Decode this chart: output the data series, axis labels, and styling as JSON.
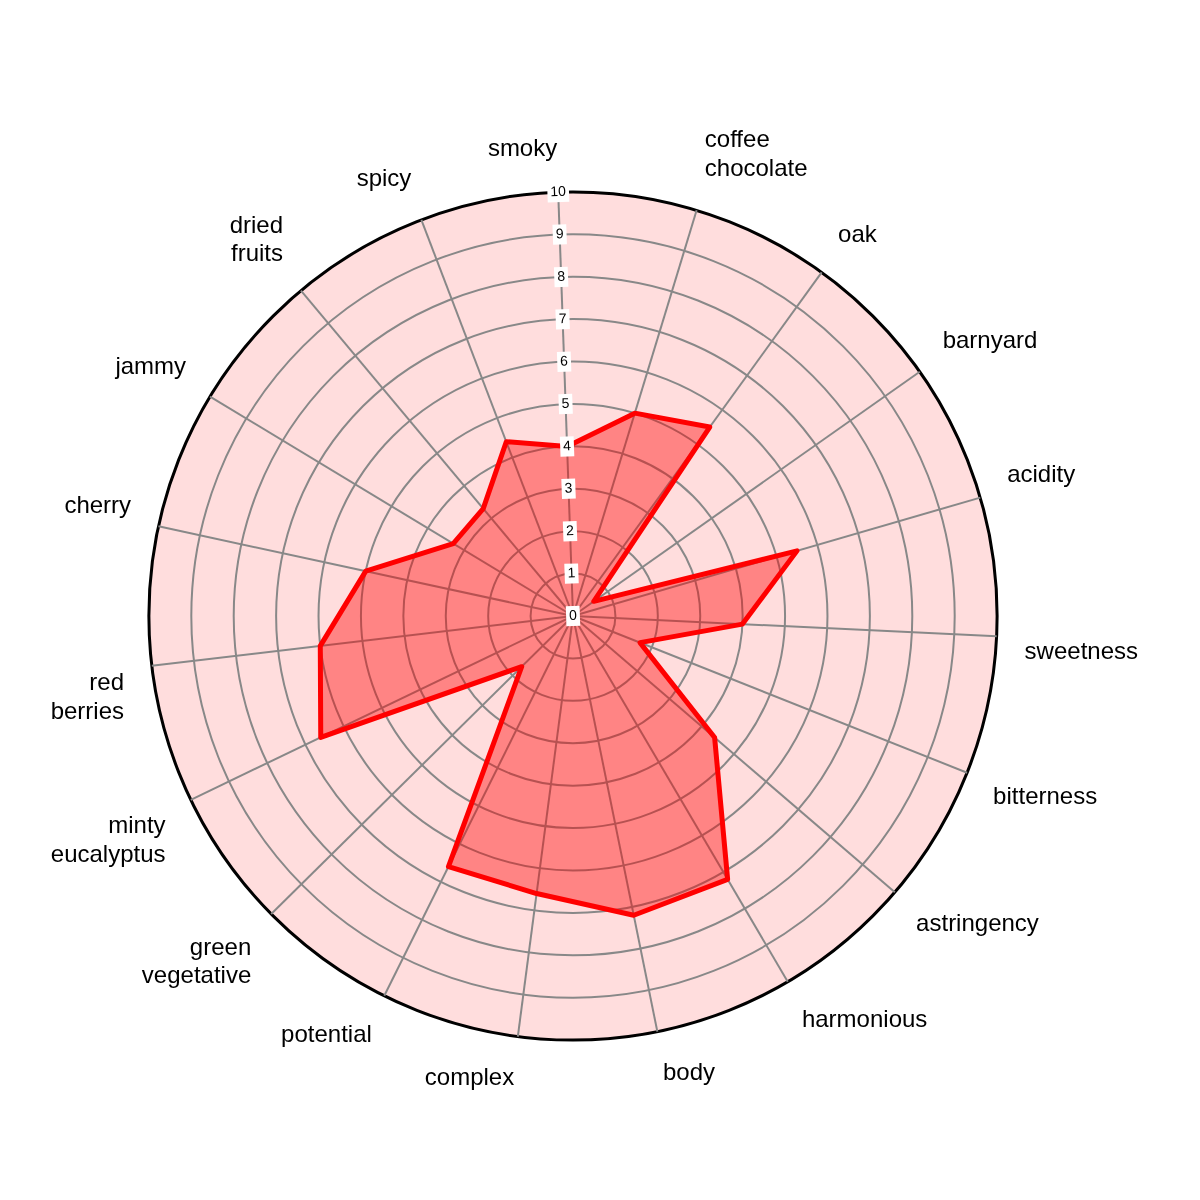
{
  "chart_data": {
    "type": "radar",
    "categories": [
      "smoky",
      "coffee\nchocolate",
      "oak",
      "barnyard",
      "acidity",
      "sweetness",
      "bitterness",
      "astringency",
      "harmonious",
      "body",
      "complex",
      "potential",
      "green\nvegetative",
      "minty\neucalyptus",
      "red\nberries",
      "cherry",
      "jammy",
      "dried\nfruits",
      "spicy"
    ],
    "series": [
      {
        "color": "#ff0000",
        "values": [
          4,
          5,
          5.5,
          0.6,
          5.5,
          4,
          1.7,
          4.4,
          7.2,
          7.2,
          6.6,
          6.6,
          1.7,
          6.6,
          6,
          5,
          3.3,
          3.3,
          4.4
        ]
      }
    ],
    "ylim": [
      0,
      10
    ],
    "yticks": [
      0,
      1,
      2,
      3,
      4,
      5,
      6,
      7,
      8,
      9,
      10
    ],
    "grid": true,
    "marker": "none"
  }
}
